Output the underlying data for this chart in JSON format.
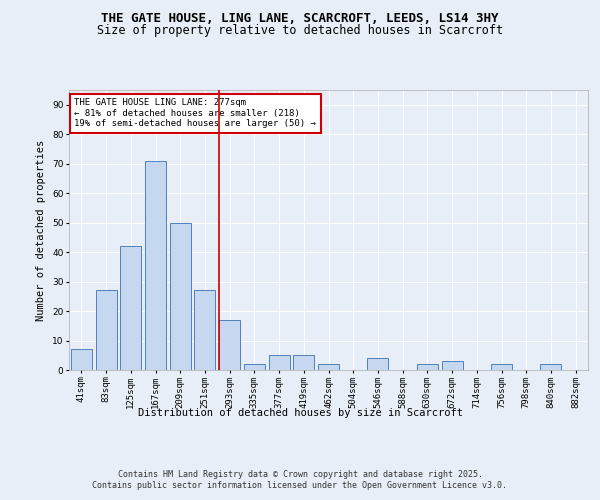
{
  "title1": "THE GATE HOUSE, LING LANE, SCARCROFT, LEEDS, LS14 3HY",
  "title2": "Size of property relative to detached houses in Scarcroft",
  "xlabel": "Distribution of detached houses by size in Scarcroft",
  "ylabel": "Number of detached properties",
  "categories": [
    "41sqm",
    "83sqm",
    "125sqm",
    "167sqm",
    "209sqm",
    "251sqm",
    "293sqm",
    "335sqm",
    "377sqm",
    "419sqm",
    "462sqm",
    "504sqm",
    "546sqm",
    "588sqm",
    "630sqm",
    "672sqm",
    "714sqm",
    "756sqm",
    "798sqm",
    "840sqm",
    "882sqm"
  ],
  "values": [
    7,
    27,
    42,
    71,
    50,
    27,
    17,
    2,
    5,
    5,
    2,
    0,
    4,
    0,
    2,
    3,
    0,
    2,
    0,
    2,
    0
  ],
  "bar_color": "#c5d8f0",
  "bar_edge_color": "#4f81bd",
  "annotation_text": "THE GATE HOUSE LING LANE: 277sqm\n← 81% of detached houses are smaller (218)\n19% of semi-detached houses are larger (50) →",
  "annotation_box_color": "#ffffff",
  "annotation_box_edge": "#cc0000",
  "vline_color": "#cc0000",
  "bg_color": "#e8eef7",
  "plot_bg_color": "#e8eef7",
  "ylim": [
    0,
    95
  ],
  "yticks": [
    0,
    10,
    20,
    30,
    40,
    50,
    60,
    70,
    80,
    90
  ],
  "footer1": "Contains HM Land Registry data © Crown copyright and database right 2025.",
  "footer2": "Contains public sector information licensed under the Open Government Licence v3.0.",
  "title_fontsize": 9,
  "subtitle_fontsize": 8.5,
  "axis_label_fontsize": 7.5,
  "tick_fontsize": 6.5,
  "annotation_fontsize": 6.5,
  "footer_fontsize": 6
}
